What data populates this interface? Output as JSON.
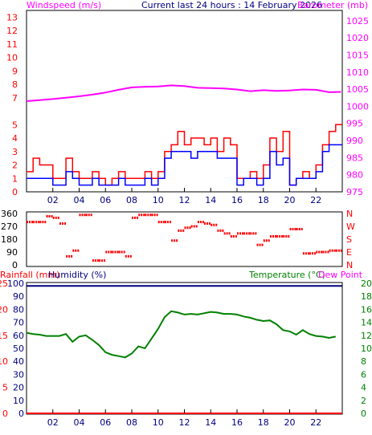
{
  "header": {
    "left_label": "Windspeed (m/s)",
    "center_label": "Current last 24 hours : 14 February 2026",
    "right_label": "Barometer (mb)"
  },
  "colors": {
    "wind_avg": "#0000ff",
    "wind_gust": "#ff0000",
    "barometer": "#ff00ff",
    "direction": "#ff0000",
    "rainfall": "#ff0000",
    "humidity": "#000080",
    "temperature": "#008000",
    "dew_point": "#ff00ff",
    "frame": "#000000"
  },
  "chart_data": [
    {
      "type": "line",
      "panel": "wind-barometer",
      "x_ticks": [
        "02",
        "04",
        "06",
        "08",
        "10",
        "12",
        "14",
        "16",
        "18",
        "20",
        "22"
      ],
      "xlim": [
        0,
        24
      ],
      "left_axis": {
        "label": "Windspeed (m/s)",
        "ylim": [
          0,
          13.5
        ],
        "ticks": [
          "0",
          "1",
          "2",
          "3",
          "4",
          "5",
          "7",
          "8",
          "9",
          "10",
          "11",
          "12",
          "13"
        ]
      },
      "right_axis": {
        "label": "Barometer (mb)",
        "ylim": [
          975,
          1028
        ],
        "ticks": [
          "975",
          "980",
          "985",
          "990",
          "995",
          "1000",
          "1005",
          "1010",
          "1015",
          "1020",
          "1025"
        ]
      },
      "series": [
        {
          "name": "Barometer (mb)",
          "axis": "right",
          "x": [
            0,
            1,
            2,
            3,
            4,
            5,
            6,
            7,
            8,
            9,
            10,
            11,
            12,
            13,
            14,
            15,
            16,
            17,
            18,
            19,
            20,
            21,
            22,
            23,
            23.9
          ],
          "y": [
            1001.5,
            1001.8,
            1002.1,
            1002.5,
            1002.9,
            1003.4,
            1004.0,
            1004.8,
            1005.5,
            1005.7,
            1005.8,
            1006.1,
            1005.9,
            1005.4,
            1005.3,
            1005.2,
            1004.9,
            1004.4,
            1004.7,
            1004.5,
            1004.6,
            1004.9,
            1004.8,
            1004.1,
            1004.2
          ]
        },
        {
          "name": "Wind gust",
          "axis": "left",
          "x": [
            0,
            0.5,
            1,
            1.5,
            2,
            2.5,
            3,
            3.5,
            4,
            4.5,
            5,
            5.5,
            6,
            6.5,
            7,
            7.5,
            8,
            8.5,
            9,
            9.5,
            10,
            10.5,
            11,
            11.5,
            12,
            12.5,
            13,
            13.5,
            14,
            14.5,
            15,
            15.5,
            16,
            16.5,
            17,
            17.5,
            18,
            18.5,
            19,
            19.5,
            20,
            20.5,
            21,
            21.5,
            22,
            22.5,
            23,
            23.5
          ],
          "y": [
            1.5,
            2.5,
            2,
            2,
            1,
            1,
            2.5,
            1.5,
            1,
            1,
            1.5,
            1,
            0.5,
            1,
            1.5,
            1,
            1,
            1,
            1.5,
            1,
            1.5,
            3,
            3.5,
            4.5,
            3.5,
            4,
            4,
            3.5,
            4,
            3,
            4,
            3.5,
            1,
            1,
            1.5,
            1,
            2,
            4,
            3,
            4.5,
            0.5,
            1,
            1.5,
            1,
            2,
            3.5,
            4.5,
            5
          ]
        },
        {
          "name": "Wind average",
          "axis": "left",
          "x": [
            0,
            0.5,
            1,
            1.5,
            2,
            2.5,
            3,
            3.5,
            4,
            4.5,
            5,
            5.5,
            6,
            6.5,
            7,
            7.5,
            8,
            8.5,
            9,
            9.5,
            10,
            10.5,
            11,
            11.5,
            12,
            12.5,
            13,
            13.5,
            14,
            14.5,
            15,
            15.5,
            16,
            16.5,
            17,
            17.5,
            18,
            18.5,
            19,
            19.5,
            20,
            20.5,
            21,
            21.5,
            22,
            22.5,
            23,
            23.5
          ],
          "y": [
            1,
            1,
            1,
            1,
            0.5,
            0.5,
            1.5,
            1,
            0.5,
            0.5,
            1,
            0.5,
            0.5,
            0.5,
            1,
            0.5,
            0.5,
            0.5,
            1,
            0.5,
            1,
            2.5,
            3,
            3,
            3,
            2.5,
            3,
            3,
            3,
            2.5,
            2.5,
            2.5,
            0.5,
            1,
            1,
            0.5,
            1,
            3,
            2,
            2.5,
            0.5,
            1,
            1,
            1,
            1.5,
            3,
            3.5,
            3.5
          ]
        }
      ]
    },
    {
      "type": "scatter",
      "panel": "wind-direction",
      "x_ticks": [],
      "xlim": [
        0,
        24
      ],
      "ylim": [
        0,
        360
      ],
      "left_ticks": [
        "360",
        "270",
        "180",
        "90",
        "0"
      ],
      "right_ticks": [
        "N",
        "W",
        "S",
        "E",
        "N"
      ],
      "series": [
        {
          "name": "Wind direction",
          "x": [
            0,
            0.5,
            1,
            1.5,
            2,
            2.5,
            3,
            3.5,
            4,
            4.5,
            5,
            5.5,
            6,
            6.5,
            7,
            7.5,
            8,
            8.5,
            9,
            9.5,
            10,
            10.5,
            11,
            11.5,
            12,
            12.5,
            13,
            13.5,
            14,
            14.5,
            15,
            15.5,
            16,
            16.5,
            17,
            17.5,
            18,
            18.5,
            19,
            19.5,
            20,
            20.5,
            21,
            21.5,
            22,
            22.5,
            23,
            23.5
          ],
          "y": [
            300,
            300,
            300,
            340,
            330,
            290,
            60,
            100,
            350,
            350,
            30,
            30,
            90,
            90,
            90,
            60,
            330,
            350,
            350,
            350,
            300,
            300,
            170,
            240,
            260,
            270,
            300,
            290,
            280,
            240,
            220,
            200,
            220,
            220,
            220,
            140,
            170,
            200,
            200,
            200,
            250,
            250,
            80,
            80,
            90,
            90,
            100,
            100
          ]
        }
      ]
    },
    {
      "type": "line",
      "panel": "temperature-humidity-rain",
      "x_ticks": [
        "02",
        "04",
        "06",
        "08",
        "10",
        "12",
        "14",
        "16",
        "18",
        "20",
        "22"
      ],
      "xlim": [
        0,
        24
      ],
      "left_axes": [
        {
          "label": "Rainfall (mm)",
          "ylim": [
            0,
            25
          ],
          "ticks": [
            "0",
            "5",
            "10",
            "15",
            "20",
            "25"
          ]
        },
        {
          "label": "Humidity (%)",
          "ylim": [
            0,
            100
          ],
          "ticks": [
            "0",
            "10",
            "20",
            "30",
            "40",
            "50",
            "60",
            "70",
            "80",
            "90",
            "100"
          ]
        }
      ],
      "right_axis": {
        "label": "Temperature (°C)",
        "ylim": [
          0,
          20
        ],
        "ticks": [
          "0",
          "2",
          "4",
          "6",
          "8",
          "10",
          "12",
          "14",
          "16",
          "18",
          "20"
        ]
      },
      "legend_extra": "Dew Point",
      "series": [
        {
          "name": "Temperature (°C)",
          "axis": "right",
          "x": [
            0,
            0.5,
            1,
            1.5,
            2,
            2.5,
            3,
            3.5,
            4,
            4.5,
            5,
            5.5,
            6,
            6.5,
            7,
            7.5,
            8,
            8.5,
            9,
            9.5,
            10,
            10.5,
            11,
            11.5,
            12,
            12.5,
            13,
            13.5,
            14,
            14.5,
            15,
            15.5,
            16,
            16.5,
            17,
            17.5,
            18,
            18.5,
            19,
            19.5,
            20,
            20.5,
            21,
            21.5,
            22,
            22.5,
            23,
            23.5
          ],
          "y": [
            12.4,
            12.2,
            12.1,
            11.9,
            11.9,
            11.9,
            12.2,
            11.0,
            11.8,
            12.0,
            11.3,
            10.5,
            9.4,
            9.0,
            8.8,
            8.6,
            9.2,
            10.3,
            10.0,
            11.5,
            13.0,
            14.8,
            15.7,
            15.5,
            15.2,
            15.3,
            15.2,
            15.4,
            15.6,
            15.5,
            15.3,
            15.3,
            15.2,
            14.9,
            14.7,
            14.4,
            14.2,
            14.3,
            13.7,
            12.8,
            12.6,
            12.1,
            12.8,
            12.2,
            11.9,
            11.8,
            11.6,
            11.8
          ]
        },
        {
          "name": "Humidity (%)",
          "axis": "left",
          "x": [
            0,
            24
          ],
          "y": [
            98,
            98
          ]
        },
        {
          "name": "Rainfall (mm)",
          "axis": "left",
          "x": [
            0,
            24
          ],
          "y": [
            0,
            0
          ]
        }
      ]
    }
  ]
}
